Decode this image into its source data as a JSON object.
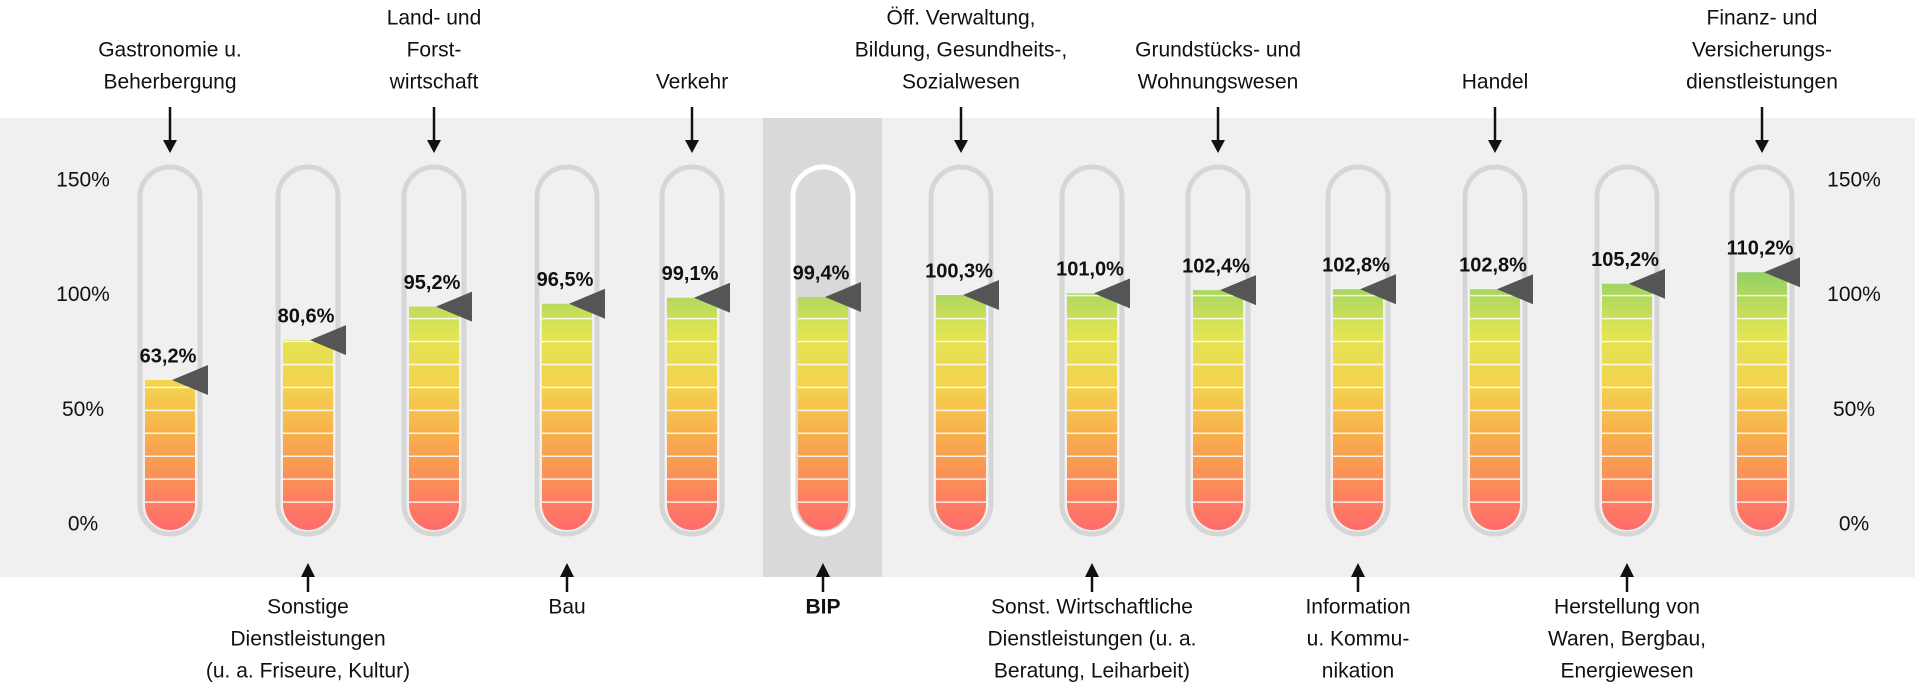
{
  "chart_data": {
    "type": "thermometer",
    "categories": [
      [
        "Gastronomie u.",
        "Beherbergung"
      ],
      [
        "Sonstige",
        "Dienstleistungen",
        "(u. a. Friseure, Kultur)"
      ],
      [
        "Land- und",
        "Forst-",
        "wirtschaft"
      ],
      [
        "Bau"
      ],
      [
        "Verkehr"
      ],
      [
        "BIP"
      ],
      [
        "Öff. Verwaltung,",
        "Bildung, Gesundheits-,",
        "Sozialwesen"
      ],
      [
        "Sonst. Wirtschaftliche",
        "Dienstleistungen (u. a.",
        "Beratung, Leiharbeit)"
      ],
      [
        "Grundstücks- und",
        "Wohnungswesen"
      ],
      [
        "Information",
        "u. Kommu-",
        "nikation"
      ],
      [
        "Handel"
      ],
      [
        "Herstellung von",
        "Waren, Bergbau,",
        "Energiewesen"
      ],
      [
        "Finanz- und",
        "Versicherungs-",
        "dienstleistungen"
      ]
    ],
    "values": [
      63.2,
      80.6,
      95.2,
      96.5,
      99.1,
      99.4,
      100.3,
      101.0,
      102.4,
      102.8,
      102.8,
      105.2,
      110.2
    ],
    "value_labels": [
      "63,2%",
      "80,6%",
      "95,2%",
      "96,5%",
      "99,1%",
      "99,4%",
      "100,3%",
      "101,0%",
      "102,4%",
      "102,8%",
      "102,8%",
      "105,2%",
      "110,2%"
    ],
    "highlight": 5,
    "ylim": [
      0,
      150
    ],
    "yticks": [
      {
        "value": 0,
        "label": "0%"
      },
      {
        "value": 50,
        "label": "50%"
      },
      {
        "value": 100,
        "label": "100%"
      },
      {
        "value": 150,
        "label": "150%"
      }
    ],
    "marker_color": "#555555"
  }
}
